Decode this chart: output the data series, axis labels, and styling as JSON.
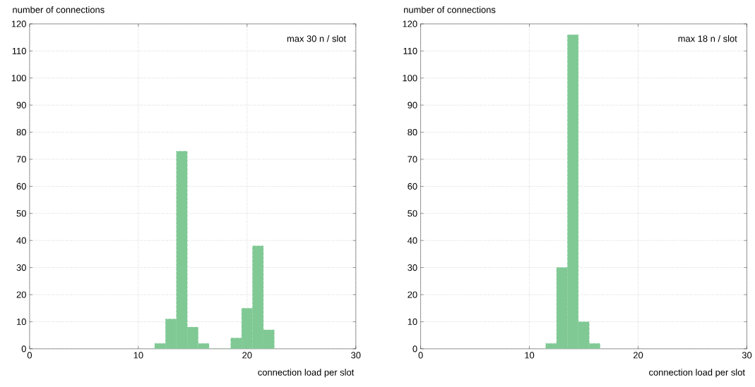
{
  "chart_data": [
    {
      "type": "histogram",
      "ylabel": "number of connections",
      "xlabel": "connection load per slot",
      "annotations": [
        "max 30 n / slot"
      ],
      "bins": [
        11.5,
        12.5,
        13.5,
        14.5,
        15.5,
        16.5,
        17.5,
        18.5,
        19.5,
        20.5,
        21.5,
        22.5
      ],
      "values": [
        2,
        11,
        73,
        8,
        2,
        0,
        0,
        4,
        15,
        38,
        7
      ],
      "color": "#80c995",
      "line_style": "dashed",
      "grid": true,
      "xlim": [
        0,
        30
      ],
      "xticks": [
        0,
        10,
        20,
        30
      ],
      "ylim": [
        0,
        120
      ],
      "yticks": [
        0,
        10,
        20,
        30,
        40,
        50,
        60,
        70,
        80,
        90,
        100,
        110,
        120
      ]
    },
    {
      "type": "histogram",
      "ylabel": "number of connections",
      "xlabel": "connection load per slot",
      "annotations": [
        "max 18 n / slot"
      ],
      "bins": [
        11.5,
        12.5,
        13.5,
        14.5,
        15.5,
        16.5
      ],
      "values": [
        2,
        30,
        116,
        10,
        2
      ],
      "color": "#80c995",
      "line_style": "dashed",
      "grid": true,
      "xlim": [
        0,
        30
      ],
      "xticks": [
        0,
        10,
        20,
        30
      ],
      "ylim": [
        0,
        120
      ],
      "yticks": [
        0,
        10,
        20,
        30,
        40,
        50,
        60,
        70,
        80,
        90,
        100,
        110,
        120
      ]
    }
  ]
}
